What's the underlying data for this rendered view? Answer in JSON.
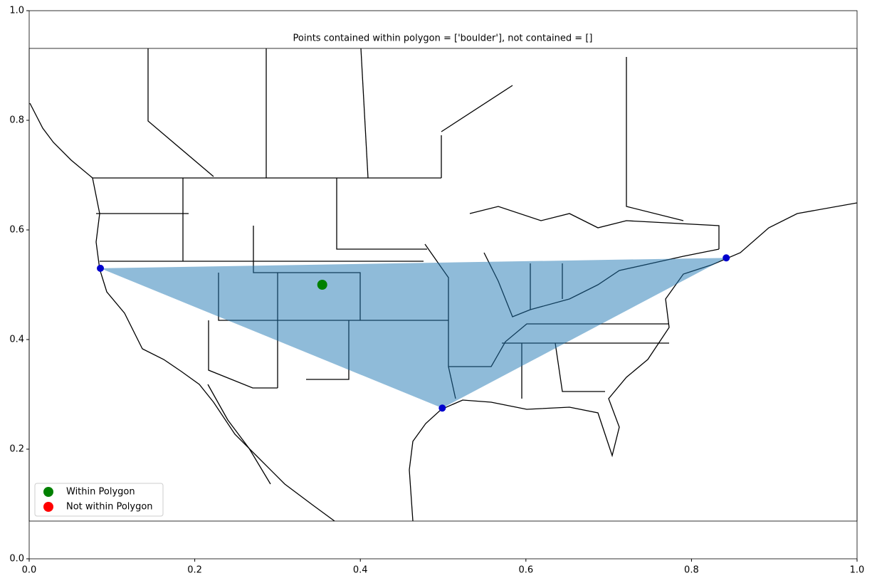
{
  "chart_data": {
    "type": "map",
    "title": "Points contained within polygon = ['boulder'], not contained = []",
    "xlim": [
      0,
      1
    ],
    "ylim": [
      0,
      1
    ],
    "xticks": [
      {
        "value": 0,
        "label": "0.0"
      },
      {
        "value": 0.2,
        "label": "0.2"
      },
      {
        "value": 0.4,
        "label": "0.4"
      },
      {
        "value": 0.6,
        "label": "0.6"
      },
      {
        "value": 0.8,
        "label": "0.8"
      },
      {
        "value": 1,
        "label": "1.0"
      }
    ],
    "yticks": [
      {
        "value": 0,
        "label": "0.0"
      },
      {
        "value": 0.2,
        "label": "0.2"
      },
      {
        "value": 0.4,
        "label": "0.4"
      },
      {
        "value": 0.6,
        "label": "0.6"
      },
      {
        "value": 0.8,
        "label": "0.8"
      },
      {
        "value": 1,
        "label": "1.0"
      }
    ],
    "polygon": {
      "color": "#1f77b4",
      "x": [
        0.086,
        0.842,
        0.499
      ],
      "y": [
        0.53,
        0.549,
        0.275
      ]
    },
    "vertices": {
      "color": "#0000cd",
      "x": [
        0.086,
        0.842,
        0.499
      ],
      "y": [
        0.53,
        0.549,
        0.275
      ]
    },
    "series": [
      {
        "name": "Within Polygon",
        "color": "green",
        "x": [
          0.354
        ],
        "y": [
          0.5
        ]
      },
      {
        "name": "Not within Polygon",
        "color": "red",
        "x": [],
        "y": []
      }
    ],
    "legend": "lower left"
  }
}
